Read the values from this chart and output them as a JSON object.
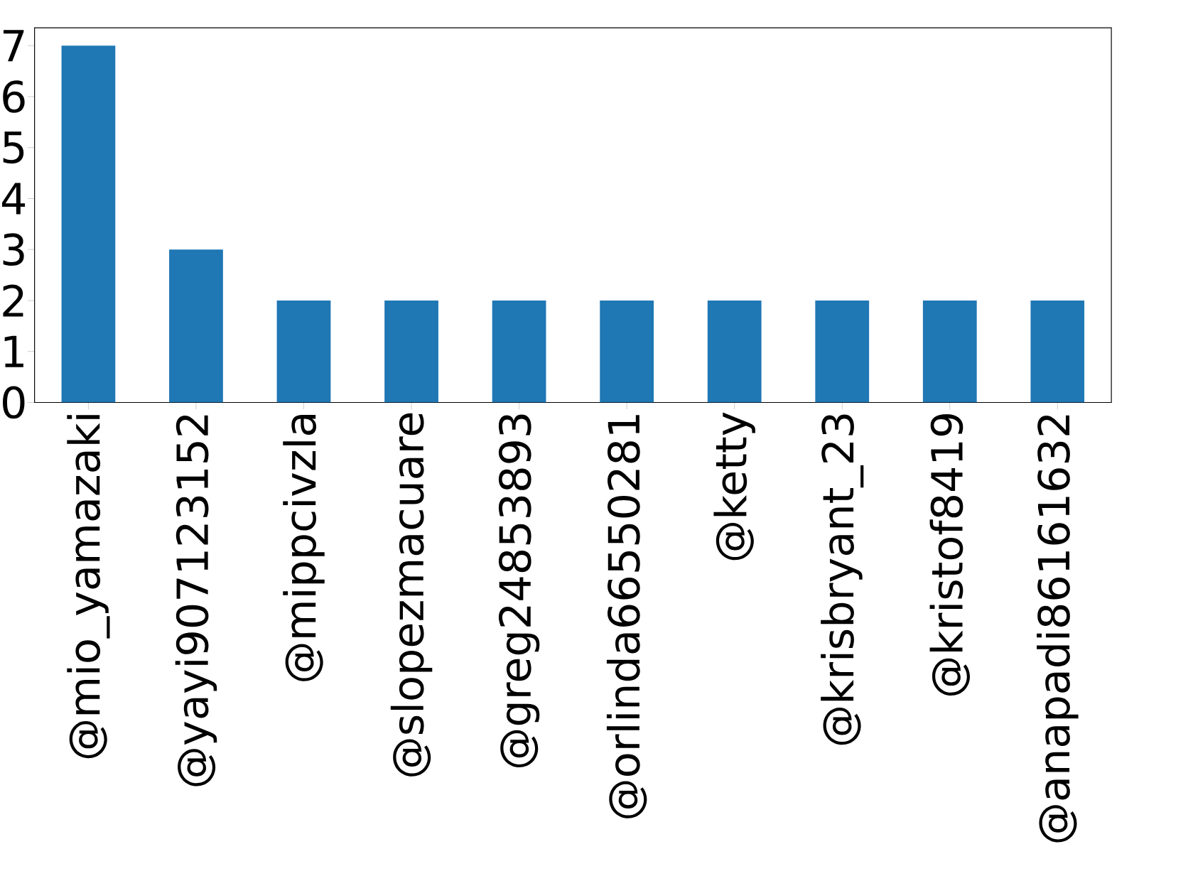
{
  "chart_data": {
    "type": "bar",
    "categories": [
      "@mio_yamazaki",
      "@yayi907123152",
      "@mippcivzla",
      "@slopezmacuare",
      "@greg24853893",
      "@orlinda66550281",
      "@ketty",
      "@krisbryant_23",
      "@kristof8419",
      "@anapadi86161632"
    ],
    "values": [
      7,
      3,
      2,
      2,
      2,
      2,
      2,
      2,
      2,
      2
    ],
    "color": "#1f77b4",
    "ylim": [
      0,
      7.35
    ],
    "yticks": [
      0,
      1,
      2,
      3,
      4,
      5,
      6,
      7
    ],
    "grid": false
  }
}
